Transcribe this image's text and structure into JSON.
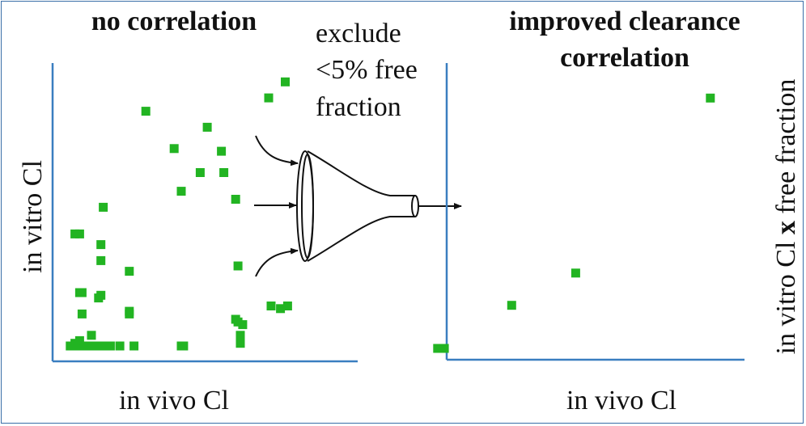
{
  "left_panel": {
    "title": "no correlation",
    "xlabel": "in vivo Cl",
    "ylabel": "in vitro Cl"
  },
  "funnel": {
    "label_lines": [
      "exclude",
      "<5% free",
      "fraction"
    ]
  },
  "right_panel": {
    "title_lines": [
      "improved clearance",
      "correlation"
    ],
    "xlabel": "in vivo Cl",
    "ylabel_prefix": "in vitro Cl ",
    "ylabel_bold": "x",
    "ylabel_suffix": " free fraction"
  },
  "colors": {
    "axis": "#3a7ec0",
    "marker": "#22b422",
    "text": "#111111",
    "frame": "#3a6ea8"
  },
  "chart_data": [
    {
      "type": "scatter",
      "title": "no correlation",
      "xlabel": "in vivo Cl",
      "ylabel": "in vitro Cl",
      "xlim": [
        0,
        100
      ],
      "ylim": [
        0,
        100
      ],
      "series": [
        {
          "x": [
            17,
            7,
            16,
            5,
            16,
            28,
            7,
            16,
            28,
            8,
            15,
            28,
            8,
            35,
            50,
            47,
            67,
            87,
            94,
            68,
            73,
            74,
            88,
            92,
            74,
            76,
            58,
            61,
            95,
            73,
            75,
            75,
            3,
            4,
            5,
            6,
            7,
            9,
            10,
            12,
            13,
            14,
            15,
            17,
            19,
            20,
            24,
            30,
            50,
            51
          ],
          "y": [
            52,
            42,
            38,
            42,
            32,
            28,
            20,
            19,
            12,
            20,
            18,
            13,
            12,
            88,
            58,
            74,
            73,
            93,
            99,
            65,
            55,
            30,
            15,
            14,
            9,
            8,
            65,
            82,
            15,
            10,
            4,
            1,
            0,
            0,
            1,
            0,
            2,
            0,
            0,
            4,
            0,
            0,
            0,
            0,
            0,
            0,
            0,
            0,
            0,
            0
          ]
        }
      ]
    },
    {
      "type": "scatter",
      "title": "improved clearance correlation",
      "xlabel": "in vivo Cl",
      "ylabel": "in vitro Cl x free fraction",
      "xlim": [
        0,
        100
      ],
      "ylim": [
        0,
        100
      ],
      "series": [
        {
          "x": [
            5,
            7,
            27,
            46,
            86
          ],
          "y": [
            0,
            0,
            16,
            28,
            93
          ]
        }
      ]
    }
  ]
}
